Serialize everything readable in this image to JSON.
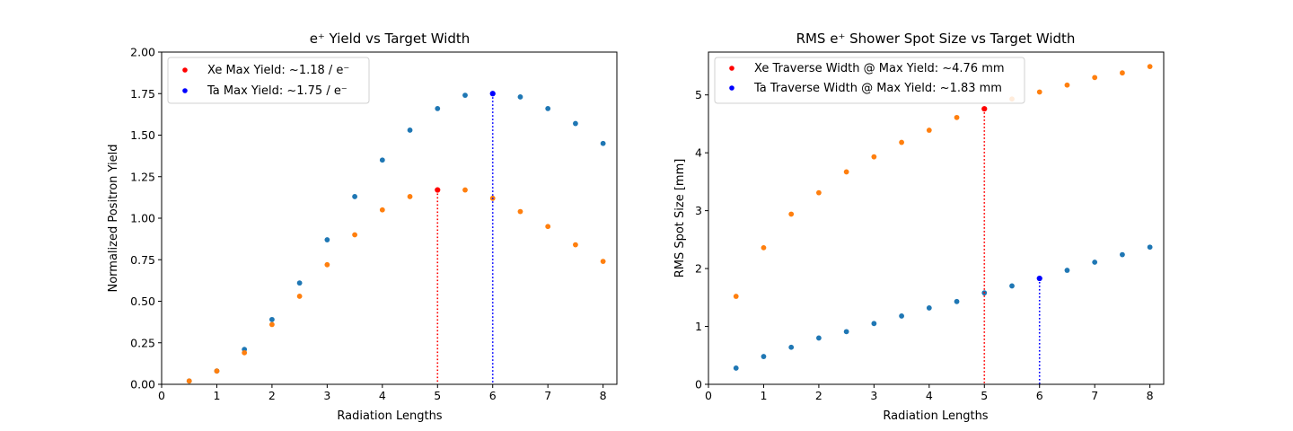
{
  "chart_data": [
    {
      "type": "scatter",
      "title": "e⁺ Yield vs Target Width",
      "xlabel": "Radiation Lengths",
      "ylabel": "Normalized Positron Yield",
      "xlim": [
        0,
        8.25
      ],
      "ylim": [
        0,
        2.0
      ],
      "xticks": [
        0,
        1,
        2,
        3,
        4,
        5,
        6,
        7,
        8
      ],
      "yticks": [
        0.0,
        0.25,
        0.5,
        0.75,
        1.0,
        1.25,
        1.5,
        1.75,
        2.0
      ],
      "ytick_labels": [
        "0.00",
        "0.25",
        "0.50",
        "0.75",
        "1.00",
        "1.25",
        "1.50",
        "1.75",
        "2.00"
      ],
      "grid": false,
      "legend_placement": "top-left",
      "series": [
        {
          "color": "#1f77b4",
          "x": [
            0.5,
            1.0,
            1.5,
            2.0,
            2.5,
            3.0,
            3.5,
            4.0,
            4.5,
            5.0,
            5.5,
            6.0,
            6.5,
            7.0,
            7.5,
            8.0
          ],
          "y": [
            0.02,
            0.08,
            0.21,
            0.39,
            0.61,
            0.87,
            1.13,
            1.35,
            1.53,
            1.66,
            1.74,
            1.75,
            1.73,
            1.66,
            1.57,
            1.45
          ]
        },
        {
          "color": "#ff7f0e",
          "x": [
            0.5,
            1.0,
            1.5,
            2.0,
            2.5,
            3.0,
            3.5,
            4.0,
            4.5,
            5.0,
            5.5,
            6.0,
            6.5,
            7.0,
            7.5,
            8.0
          ],
          "y": [
            0.02,
            0.08,
            0.19,
            0.36,
            0.53,
            0.72,
            0.9,
            1.05,
            1.13,
            1.17,
            1.17,
            1.12,
            1.04,
            0.95,
            0.84,
            0.74
          ]
        }
      ],
      "markers": [
        {
          "name": "Xe Max Yield: ~1.18 / e⁻",
          "color": "#ff0000",
          "x": 5.0,
          "y": 1.17
        },
        {
          "name": "Ta Max Yield: ~1.75 / e⁻",
          "color": "#0000ff",
          "x": 6.0,
          "y": 1.75
        }
      ]
    },
    {
      "type": "scatter",
      "title": "RMS e⁺ Shower Spot Size vs Target Width",
      "xlabel": "Radiation Lengths",
      "ylabel": "RMS Spot Size [mm]",
      "xlim": [
        0,
        8.25
      ],
      "ylim": [
        0,
        5.74
      ],
      "xticks": [
        0,
        1,
        2,
        3,
        4,
        5,
        6,
        7,
        8
      ],
      "yticks": [
        0,
        1,
        2,
        3,
        4,
        5
      ],
      "ytick_labels": [
        "0",
        "1",
        "2",
        "3",
        "4",
        "5"
      ],
      "grid": false,
      "legend_placement": "top-left",
      "series": [
        {
          "color": "#ff7f0e",
          "x": [
            0.5,
            1.0,
            1.5,
            2.0,
            2.5,
            3.0,
            3.5,
            4.0,
            4.5,
            5.0,
            5.5,
            6.0,
            6.5,
            7.0,
            7.5,
            8.0
          ],
          "y": [
            1.52,
            2.36,
            2.94,
            3.31,
            3.67,
            3.93,
            4.18,
            4.39,
            4.61,
            4.76,
            4.93,
            5.05,
            5.17,
            5.3,
            5.38,
            5.49
          ]
        },
        {
          "color": "#1f77b4",
          "x": [
            0.5,
            1.0,
            1.5,
            2.0,
            2.5,
            3.0,
            3.5,
            4.0,
            4.5,
            5.0,
            5.5,
            6.0,
            6.5,
            7.0,
            7.5,
            8.0
          ],
          "y": [
            0.28,
            0.48,
            0.64,
            0.8,
            0.91,
            1.05,
            1.18,
            1.32,
            1.43,
            1.58,
            1.7,
            1.83,
            1.97,
            2.11,
            2.24,
            2.37
          ]
        }
      ],
      "markers": [
        {
          "name": "Xe Traverse Width @ Max Yield: ~4.76 mm",
          "color": "#ff0000",
          "x": 5.0,
          "y": 4.76
        },
        {
          "name": "Ta Traverse Width @ Max Yield: ~1.83 mm",
          "color": "#0000ff",
          "x": 6.0,
          "y": 1.83
        }
      ]
    }
  ]
}
